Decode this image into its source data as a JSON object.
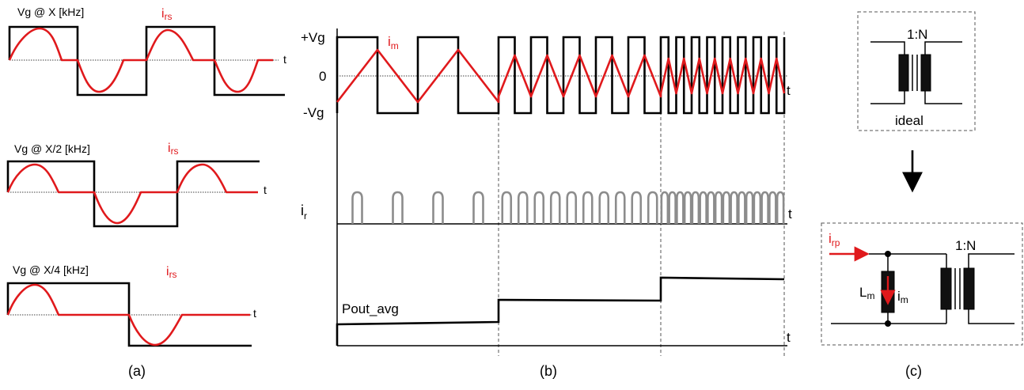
{
  "panel_a": {
    "label": "(a)",
    "plots": [
      {
        "gate_label": "Vg @ X [kHz]",
        "current_label": "i",
        "current_sub": "rs",
        "axis_label": "t"
      },
      {
        "gate_label": "Vg @ X/2 [kHz]",
        "current_label": "i",
        "current_sub": "rs",
        "axis_label": "t"
      },
      {
        "gate_label": "Vg @ X/4 [kHz]",
        "current_label": "i",
        "current_sub": "rs",
        "axis_label": "t"
      }
    ]
  },
  "panel_b": {
    "label": "(b)",
    "plus_vg": "+Vg",
    "zero": "0",
    "minus_vg": "-Vg",
    "im_label": "i",
    "im_sub": "m",
    "ir_label": "i",
    "ir_sub": "r",
    "pout_label": "Pout_avg",
    "axis_label": "t"
  },
  "panel_c": {
    "label": "(c)",
    "ideal_ratio": "1:N",
    "ideal_label": "ideal",
    "irp_label": "i",
    "irp_sub": "rp",
    "lm_label": "L",
    "lm_sub": "m",
    "im_label": "i",
    "im_sub": "m",
    "model_ratio": "1:N"
  },
  "colors": {
    "current": "#e0191c",
    "gate": "#000000",
    "resonant": "#8c8c8c"
  },
  "icons": [
    "down-arrow-icon",
    "right-arrow-icon",
    "transformer-icon"
  ]
}
